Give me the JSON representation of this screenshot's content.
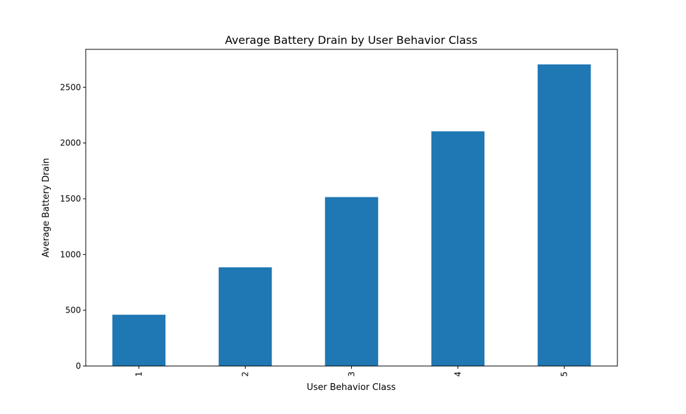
{
  "chart_data": {
    "type": "bar",
    "title": "Average Battery Drain by User Behavior Class",
    "xlabel": "User Behavior Class",
    "ylabel": "Average Battery Drain",
    "categories": [
      "1",
      "2",
      "3",
      "4",
      "5"
    ],
    "values": [
      460,
      885,
      1515,
      2105,
      2705
    ],
    "ylim": [
      0,
      2840
    ],
    "yticks": [
      0,
      500,
      1000,
      1500,
      2000,
      2500
    ],
    "xtick_rotation": 90,
    "grid": false,
    "legend": "none",
    "bar_color": "#1f77b4"
  }
}
